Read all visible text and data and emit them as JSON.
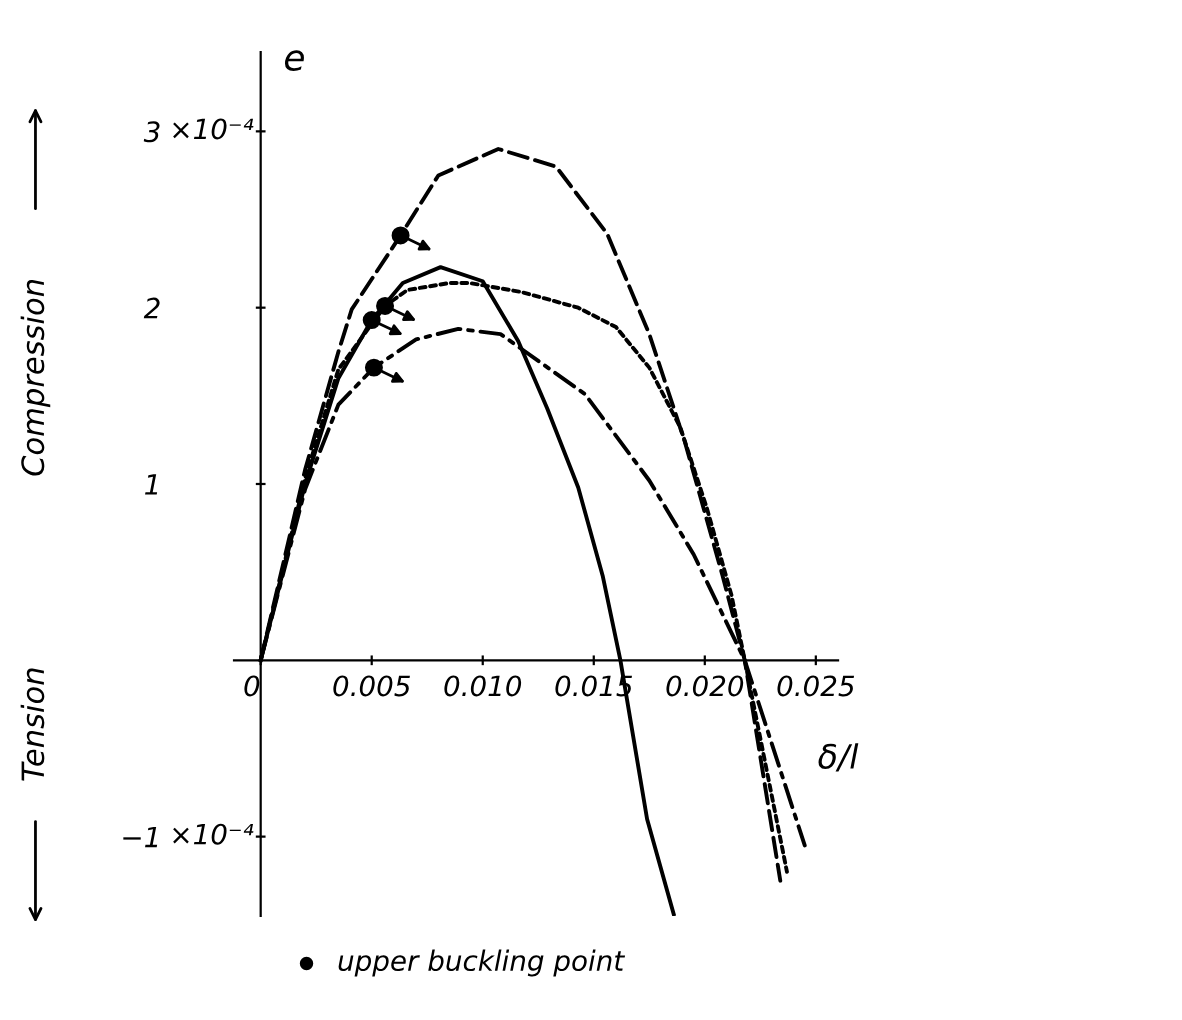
{
  "chart_data": {
    "type": "line",
    "xlabel": "δ/l",
    "ylabel": "e",
    "annotations": [
      "Compression",
      "Tension",
      "×10⁻⁴",
      "×10⁻⁴"
    ],
    "xlim": [
      -0.0012,
      0.026
    ],
    "ylim": [
      -1.45,
      3.45
    ],
    "xticks": [
      {
        "value": 0,
        "label": "0"
      },
      {
        "value": 0.005,
        "label": "0.005"
      },
      {
        "value": 0.01,
        "label": "0.010"
      },
      {
        "value": 0.015,
        "label": "0.015"
      },
      {
        "value": 0.02,
        "label": "0.020"
      },
      {
        "value": 0.025,
        "label": "0.025"
      }
    ],
    "yticks": [
      {
        "value": -1,
        "label": "−1"
      },
      1,
      2,
      3
    ],
    "legend": "bottom",
    "series": [
      {
        "color": "#000000",
        "line_style": "dashed",
        "x": [
          0,
          0.002,
          0.0035,
          0.0041,
          0.0063,
          0.008,
          0.0107,
          0.0133,
          0.0156,
          0.0175,
          0.0191,
          0.0208,
          0.0218,
          0.0234
        ],
        "values": [
          0,
          1.08,
          1.75,
          1.99,
          2.41,
          2.75,
          2.9,
          2.8,
          2.42,
          1.85,
          1.24,
          0.48,
          0,
          -1.25
        ]
      },
      {
        "color": "#000000",
        "line_style": "dotted",
        "x": [
          0,
          0.002,
          0.0035,
          0.0056,
          0.0066,
          0.0085,
          0.0094,
          0.0117,
          0.0143,
          0.016,
          0.0175,
          0.0189,
          0.0201,
          0.0212,
          0.0218,
          0.0237
        ],
        "values": [
          0,
          1.03,
          1.65,
          2.01,
          2.1,
          2.14,
          2.14,
          2.09,
          2.0,
          1.89,
          1.66,
          1.32,
          0.86,
          0.37,
          0,
          -1.2
        ]
      },
      {
        "color": "#000000",
        "line_style": "solid",
        "x": [
          0,
          0.002,
          0.0035,
          0.005,
          0.0064,
          0.0081,
          0.01,
          0.0116,
          0.0129,
          0.0143,
          0.0154,
          0.0162,
          0.0174,
          0.0186
        ],
        "values": [
          0,
          1.0,
          1.6,
          1.93,
          2.14,
          2.23,
          2.15,
          1.81,
          1.43,
          0.98,
          0.48,
          0,
          -0.9,
          -1.44
        ]
      },
      {
        "color": "#000000",
        "line_style": "dashdot",
        "x": [
          0,
          0.002,
          0.0035,
          0.0051,
          0.007,
          0.0089,
          0.0108,
          0.0117,
          0.0146,
          0.0175,
          0.0195,
          0.0218,
          0.0245
        ],
        "values": [
          0,
          0.97,
          1.45,
          1.66,
          1.82,
          1.88,
          1.85,
          1.77,
          1.51,
          1.02,
          0.6,
          0,
          -1.05
        ]
      },
      {
        "type": "scatter",
        "name": "upper buckling point",
        "color": "#000000",
        "marker": "circle",
        "x": [
          0.0063,
          0.0056,
          0.005,
          0.0051
        ],
        "values": [
          2.41,
          2.01,
          1.93,
          1.66
        ]
      }
    ]
  }
}
